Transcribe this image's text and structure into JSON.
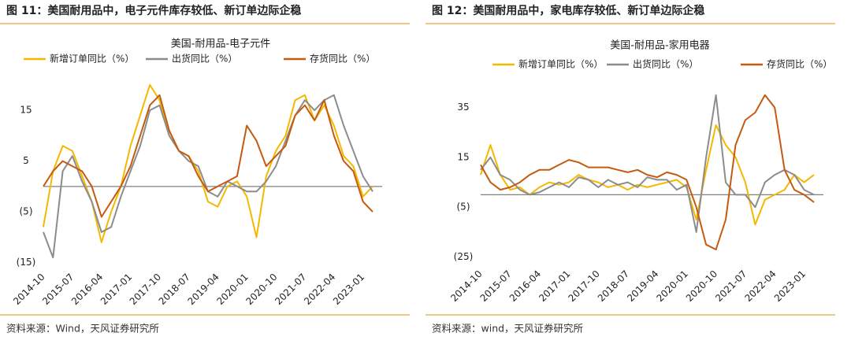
{
  "chart_data": [
    {
      "type": "line",
      "figure_title": "图 11：美国耐用品中，电子元件库存较低、新订单边际企稳",
      "title": "美国-耐用品-电子元件",
      "source": "资料来源：Wind，天风证券研究所",
      "categories": [
        "2014-10",
        null,
        null,
        "2015-07",
        null,
        null,
        "2016-04",
        null,
        null,
        "2017-01",
        null,
        null,
        "2017-10",
        null,
        null,
        "2018-07",
        null,
        null,
        "2019-04",
        null,
        null,
        "2020-01",
        null,
        null,
        "2020-10",
        null,
        null,
        "2021-07",
        null,
        null,
        "2022-04",
        null,
        null,
        "2023-01",
        null
      ],
      "series": [
        {
          "name": "新增订单同比（%）",
          "color": "#f5b800",
          "values": [
            -8,
            3,
            8,
            7,
            2,
            -3,
            -11,
            -5,
            0,
            8,
            14,
            20,
            17,
            10,
            7,
            6,
            3,
            -3,
            -4,
            0,
            1,
            -2,
            -10,
            2,
            7,
            10,
            17,
            18,
            13,
            16,
            12,
            6,
            4,
            -2,
            0
          ]
        },
        {
          "name": "出货同比（%）",
          "color": "#8c8c8c",
          "values": [
            -9,
            -14,
            3,
            6,
            1,
            -3,
            -9,
            -8,
            -2,
            3,
            8,
            15,
            16,
            10,
            7,
            5,
            4,
            -1,
            -2,
            1,
            0,
            -1,
            -1,
            1,
            4,
            9,
            14,
            17,
            15,
            17,
            18,
            12,
            7,
            2,
            -1
          ]
        },
        {
          "name": "存货同比（%）",
          "color": "#c55a11",
          "values": [
            0,
            3,
            5,
            4,
            3,
            0,
            -6,
            -3,
            0,
            4,
            10,
            16,
            18,
            11,
            7,
            6,
            2,
            -1,
            0,
            1,
            2,
            12,
            9,
            4,
            6,
            8,
            14,
            16,
            13,
            17,
            10,
            5,
            3,
            -3,
            -5
          ]
        }
      ],
      "ylim": [
        -16,
        22
      ],
      "yticks": [
        15,
        5,
        {
          "value": -5,
          "label": "(5)"
        },
        {
          "value": -15,
          "label": "(15)"
        }
      ]
    },
    {
      "type": "line",
      "figure_title": "图 12：美国耐用品中，家电库存较低、新订单边际企稳",
      "title": "美国-耐用品-家用电器",
      "source": "资料来源：wind，天风证券研究所",
      "categories": [
        "2014-10",
        null,
        null,
        "2015-07",
        null,
        null,
        "2016-04",
        null,
        null,
        "2017-01",
        null,
        null,
        "2017-10",
        null,
        null,
        "2018-07",
        null,
        null,
        "2019-04",
        null,
        null,
        "2020-01",
        null,
        null,
        "2020-10",
        null,
        null,
        "2021-07",
        null,
        null,
        "2022-04",
        null,
        null,
        "2023-01",
        null
      ],
      "series": [
        {
          "name": "新增订单同比（%）",
          "color": "#f5b800",
          "values": [
            8,
            20,
            8,
            2,
            3,
            0,
            3,
            5,
            4,
            5,
            8,
            6,
            5,
            3,
            4,
            2,
            4,
            3,
            4,
            5,
            6,
            3,
            -10,
            10,
            28,
            20,
            15,
            5,
            -12,
            -2,
            0,
            2,
            8,
            5,
            8
          ]
        },
        {
          "name": "出货同比（%）",
          "color": "#8c8c8c",
          "values": [
            10,
            15,
            8,
            6,
            2,
            0,
            1,
            3,
            5,
            3,
            7,
            6,
            3,
            6,
            4,
            5,
            3,
            7,
            6,
            6,
            2,
            4,
            -15,
            15,
            40,
            5,
            0,
            0,
            -5,
            5,
            8,
            10,
            8,
            2,
            0
          ]
        },
        {
          "name": "存货同比（%）",
          "color": "#c55a11",
          "values": [
            12,
            5,
            2,
            3,
            5,
            8,
            10,
            10,
            12,
            14,
            13,
            11,
            11,
            11,
            10,
            9,
            10,
            8,
            7,
            9,
            8,
            6,
            -5,
            -20,
            -22,
            -10,
            20,
            30,
            33,
            40,
            35,
            10,
            2,
            0,
            -3
          ]
        }
      ],
      "ylim": [
        -28,
        45
      ],
      "yticks": [
        35,
        15,
        {
          "value": -5,
          "label": "(5)"
        },
        {
          "value": -25,
          "label": "(25)"
        }
      ]
    }
  ]
}
